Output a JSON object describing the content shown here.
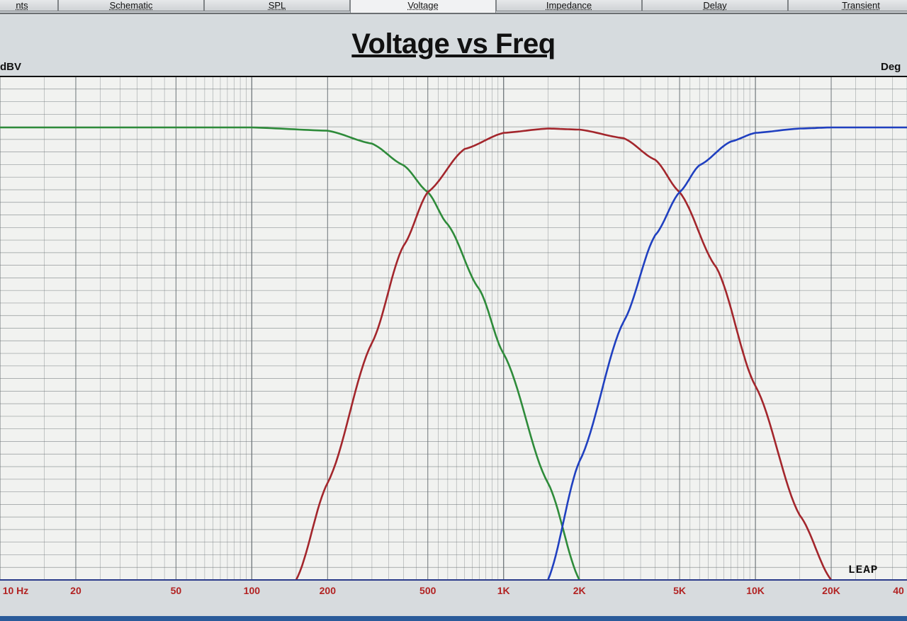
{
  "tabs": [
    {
      "label": "nts",
      "active": false
    },
    {
      "label": "Schematic",
      "active": false
    },
    {
      "label": "SPL",
      "active": false
    },
    {
      "label": "Voltage",
      "active": true
    },
    {
      "label": "Impedance",
      "active": false
    },
    {
      "label": "Delay",
      "active": false
    },
    {
      "label": "Transient",
      "active": false
    }
  ],
  "y_unit_left": "dBV",
  "y_unit_right": "Deg",
  "logo_text": "LEAP",
  "x_tick_labels": [
    "10 Hz",
    "20",
    "50",
    "100",
    "200",
    "500",
    "1K",
    "2K",
    "5K",
    "10K",
    "20K",
    "40"
  ],
  "colors": {
    "grid": "#6d7478",
    "plot_bg": "#f1f2f0",
    "green_curve": "#2e8b3a",
    "red_curve": "#a3262c",
    "blue_curve": "#2040c0",
    "tick_text": "#b22222"
  },
  "chart_data": {
    "type": "line",
    "title": "Voltage vs Freq",
    "xlabel": "",
    "ylabel": "dBV",
    "y2label": "Deg",
    "x_scale": "log",
    "xlim": [
      10,
      40000
    ],
    "grid": true,
    "series": [
      {
        "color": "#2e8b3a",
        "x": [
          10,
          100,
          200,
          300,
          400,
          500,
          600,
          800,
          1000,
          1500,
          2000
        ],
        "y": [
          0,
          0,
          -0.3,
          -1.5,
          -3.5,
          -6,
          -9,
          -15,
          -21,
          -33,
          -42
        ]
      },
      {
        "color": "#a3262c",
        "x": [
          150,
          200,
          300,
          400,
          500,
          700,
          1000,
          1500,
          2000,
          3000,
          4000,
          5000,
          7000,
          10000,
          15000,
          20000
        ],
        "y": [
          -42,
          -33,
          -20,
          -11,
          -6,
          -2,
          -0.5,
          -0.1,
          -0.2,
          -1,
          -3,
          -6,
          -13,
          -24,
          -36,
          -42
        ]
      },
      {
        "color": "#2040c0",
        "x": [
          1500,
          2000,
          3000,
          4000,
          5000,
          6000,
          8000,
          10000,
          15000,
          20000,
          40000
        ],
        "y": [
          -42,
          -31,
          -18,
          -10,
          -6,
          -3.5,
          -1.3,
          -0.5,
          -0.1,
          0,
          0
        ]
      }
    ]
  }
}
